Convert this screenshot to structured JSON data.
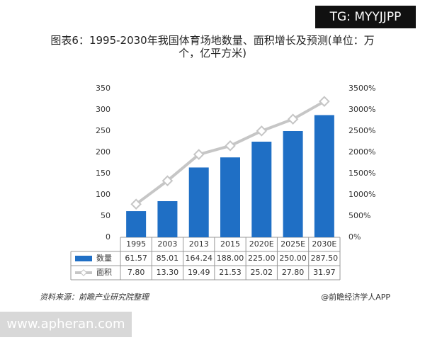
{
  "chart_data": {
    "type": "bar",
    "title": "图表6：1995-2030年我国体育场地数量、面积增长及预测(单位：万个，亿平方米)",
    "categories": [
      "1995",
      "2003",
      "2013",
      "2015",
      "2020E",
      "2025E",
      "2030E"
    ],
    "series": [
      {
        "name": "数量",
        "color": "#1f6fc5",
        "values": [
          61.57,
          85.01,
          164.24,
          188.0,
          225.0,
          250.0,
          287.5
        ],
        "value_labels": [
          "61.57",
          "85.01",
          "164.24",
          "188.00",
          "225.00",
          "250.00",
          "287.50"
        ]
      },
      {
        "name": "面积",
        "type": "line",
        "axis": "y2",
        "color": "#c6c6c6",
        "values": [
          7.8,
          13.3,
          19.49,
          21.53,
          25.02,
          27.8,
          31.97
        ],
        "value_labels": [
          "7.80",
          "13.30",
          "19.49",
          "21.53",
          "25.02",
          "27.80",
          "31.97"
        ]
      }
    ],
    "ylim": [
      0,
      350
    ],
    "yticks": [
      0,
      50,
      100,
      150,
      200,
      250,
      300,
      350
    ],
    "y2lim": [
      0,
      35
    ],
    "y2ticks": [
      {
        "value": 0,
        "label": "0%"
      },
      {
        "value": 5,
        "label": "500%"
      },
      {
        "value": 10,
        "label": "1000%"
      },
      {
        "value": 15,
        "label": "1500%"
      },
      {
        "value": 20,
        "label": "2000%"
      },
      {
        "value": 25,
        "label": "2500%"
      },
      {
        "value": 30,
        "label": "3000%"
      },
      {
        "value": 35,
        "label": "3500%"
      }
    ],
    "grid": false,
    "source": "资料来源：前瞻产业研究院整理",
    "credit": "@前瞻经济学人APP"
  },
  "watermarks": {
    "top": "TG: MYYJJPP",
    "bottom": "www.apheran.com"
  }
}
